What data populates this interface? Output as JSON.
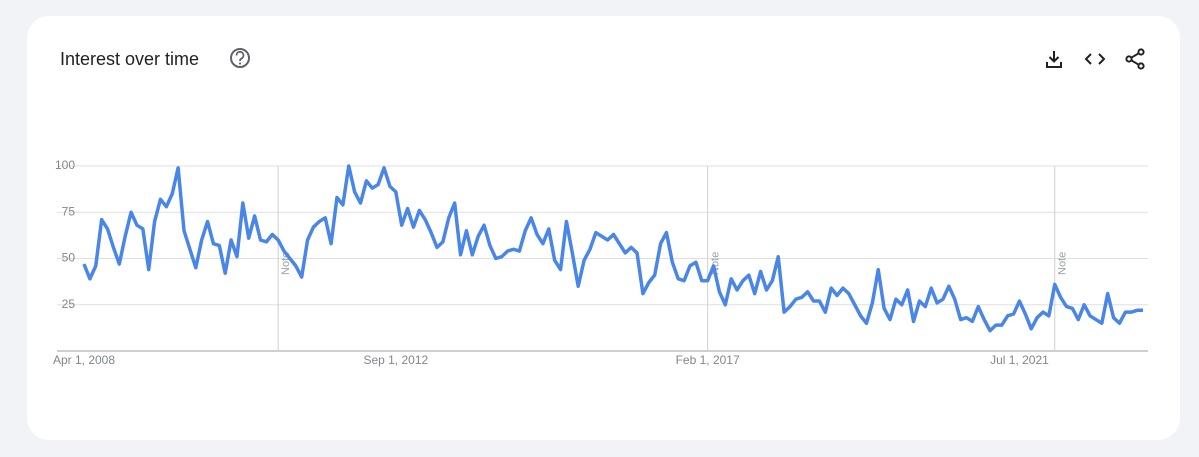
{
  "chart_data": {
    "type": "line",
    "title": "Interest over time",
    "categories": [
      "Apr 1, 2008",
      null,
      null,
      null,
      null,
      null,
      null,
      null,
      null,
      null,
      null,
      null,
      null,
      null,
      null,
      null,
      null,
      null,
      null,
      null,
      null,
      null,
      null,
      null,
      null,
      null,
      null,
      null,
      null,
      null,
      null,
      null,
      null,
      null,
      null,
      null,
      null,
      null,
      null,
      null,
      null,
      null,
      null,
      null,
      null,
      null,
      null,
      null,
      null,
      null,
      null,
      null,
      null,
      "Sep 1, 2012",
      null,
      null,
      null,
      null,
      null,
      null,
      null,
      null,
      null,
      null,
      null,
      null,
      null,
      null,
      null,
      null,
      null,
      null,
      null,
      null,
      null,
      null,
      null,
      null,
      null,
      null,
      null,
      null,
      null,
      null,
      null,
      null,
      null,
      null,
      null,
      null,
      null,
      null,
      null,
      null,
      null,
      null,
      null,
      null,
      null,
      null,
      null,
      null,
      null,
      null,
      null,
      null,
      "Feb 1, 2017",
      null,
      null,
      null,
      null,
      null,
      null,
      null,
      null,
      null,
      null,
      null,
      null,
      null,
      null,
      null,
      null,
      null,
      null,
      null,
      null,
      null,
      null,
      null,
      null,
      null,
      null,
      null,
      null,
      null,
      null,
      null,
      null,
      null,
      null,
      null,
      null,
      null,
      null,
      null,
      null,
      null,
      null,
      null,
      null,
      null,
      null,
      null,
      null,
      null,
      null,
      null,
      null,
      "Jul 1, 2021",
      null,
      null,
      null,
      null,
      null,
      null,
      null,
      null,
      null,
      null,
      null,
      null,
      null,
      null,
      null,
      null,
      null,
      null,
      null,
      null,
      null
    ],
    "values": [
      47,
      39,
      46,
      71,
      66,
      56,
      47,
      62,
      75,
      68,
      66,
      44,
      70,
      82,
      78,
      85,
      99,
      65,
      55,
      45,
      60,
      70,
      58,
      57,
      42,
      60,
      51,
      80,
      61,
      73,
      60,
      59,
      63,
      60,
      54,
      50,
      46,
      40,
      60,
      67,
      70,
      72,
      58,
      83,
      79,
      100,
      86,
      80,
      92,
      88,
      90,
      99,
      89,
      86,
      68,
      77,
      67,
      76,
      71,
      64,
      56,
      59,
      72,
      80,
      52,
      65,
      52,
      62,
      68,
      57,
      50,
      51,
      54,
      55,
      54,
      65,
      72,
      63,
      58,
      66,
      49,
      44,
      70,
      53,
      35,
      49,
      55,
      64,
      62,
      60,
      63,
      58,
      53,
      56,
      53,
      31,
      37,
      41,
      58,
      64,
      48,
      39,
      38,
      46,
      48,
      38,
      38,
      46,
      32,
      25,
      39,
      33,
      38,
      41,
      31,
      43,
      33,
      38,
      51,
      21,
      24,
      28,
      29,
      32,
      27,
      27,
      21,
      34,
      30,
      34,
      31,
      25,
      19,
      15,
      26,
      44,
      23,
      17,
      28,
      25,
      33,
      16,
      27,
      24,
      34,
      26,
      28,
      35,
      28,
      17,
      18,
      16,
      24,
      17,
      11,
      14,
      14,
      19,
      20,
      27,
      20,
      12,
      18,
      21,
      19,
      36,
      29,
      24,
      23,
      17,
      25,
      19,
      17,
      15,
      31,
      18,
      15,
      21,
      21,
      22,
      22
    ],
    "color": "#4a86e8",
    "ylim": [
      0,
      100
    ],
    "yticks": [
      25,
      50,
      75,
      100
    ],
    "grid": true,
    "annotations": [
      {
        "text": "Note",
        "index": 33
      },
      {
        "text": "Note",
        "index": 106
      },
      {
        "text": "Note",
        "index": 165
      }
    ]
  }
}
